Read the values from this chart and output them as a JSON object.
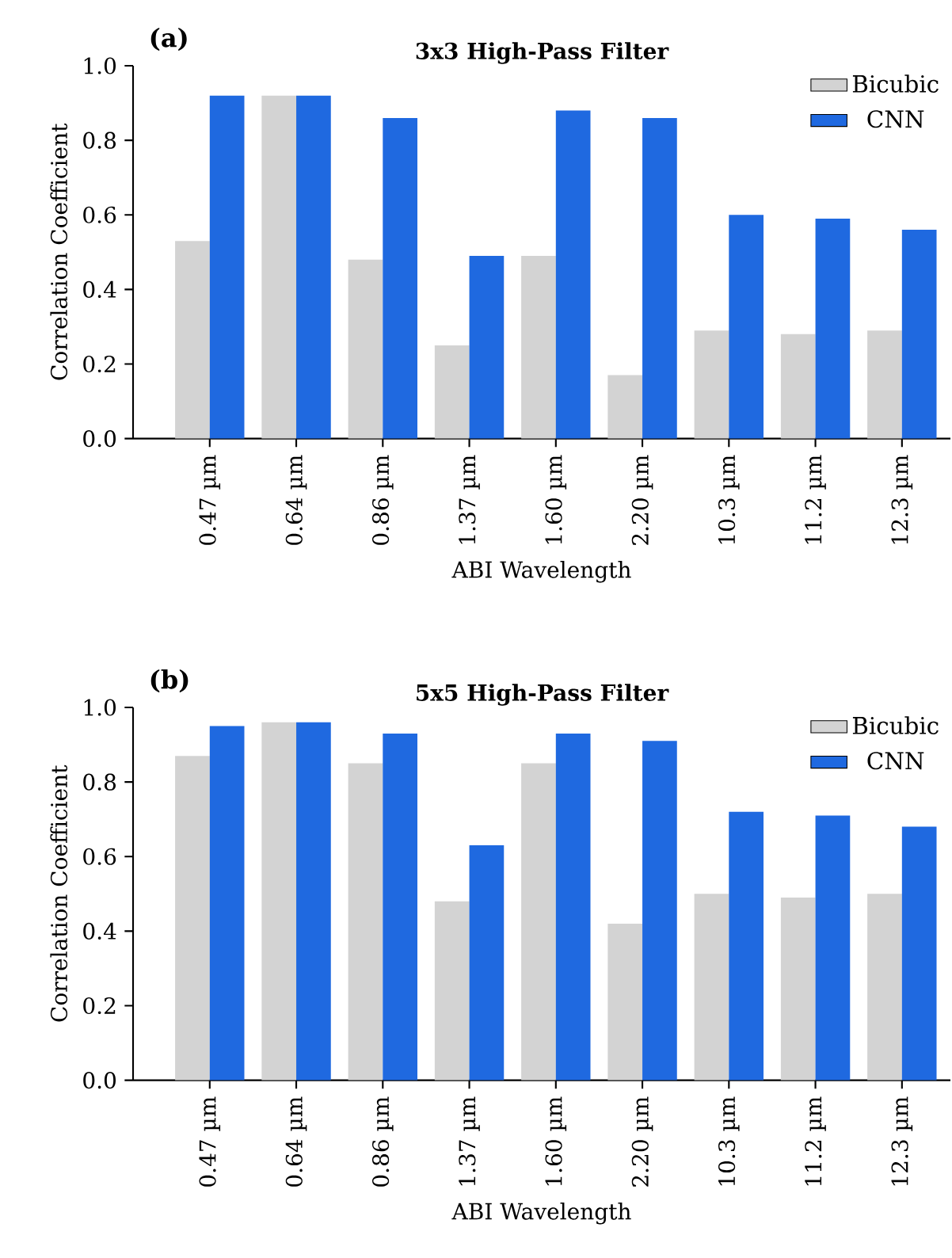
{
  "chart_data": [
    {
      "type": "bar",
      "title": "3x3 High-Pass Filter",
      "xlabel": "ABI Wavelength",
      "ylabel": "Correlation Coefficient",
      "annotations": [
        "(a)"
      ],
      "categories": [
        "0.47 µm",
        "0.64 µm",
        "0.86 µm",
        "1.37 µm",
        "1.60 µm",
        "2.20 µm",
        "10.3 µm",
        "11.2 µm",
        "12.3 µm"
      ],
      "series": [
        {
          "name": "Bicubic",
          "color": "#d3d3d3",
          "values": [
            0.53,
            0.92,
            0.48,
            0.25,
            0.49,
            0.17,
            0.29,
            0.28,
            0.29
          ]
        },
        {
          "name": "CNN",
          "color": "#1f69e0",
          "values": [
            0.92,
            0.92,
            0.86,
            0.49,
            0.88,
            0.86,
            0.6,
            0.59,
            0.56
          ]
        }
      ],
      "ylim": [
        0,
        1
      ],
      "yticks": [
        {
          "value": 0,
          "label": "0.0"
        },
        {
          "value": 0.2,
          "label": "0.2"
        },
        {
          "value": 0.4,
          "label": "0.4"
        },
        {
          "value": 0.6,
          "label": "0.6"
        },
        {
          "value": 0.8,
          "label": "0.8"
        },
        {
          "value": 1,
          "label": "1.0"
        }
      ],
      "legend": "top right"
    },
    {
      "type": "bar",
      "title": "5x5 High-Pass Filter",
      "xlabel": "ABI Wavelength",
      "ylabel": "Correlation Coefficient",
      "annotations": [
        "(b)"
      ],
      "categories": [
        "0.47 µm",
        "0.64 µm",
        "0.86 µm",
        "1.37 µm",
        "1.60 µm",
        "2.20 µm",
        "10.3 µm",
        "11.2 µm",
        "12.3 µm"
      ],
      "series": [
        {
          "name": "Bicubic",
          "color": "#d3d3d3",
          "values": [
            0.87,
            0.96,
            0.85,
            0.48,
            0.85,
            0.42,
            0.5,
            0.49,
            0.5
          ]
        },
        {
          "name": "CNN",
          "color": "#1f69e0",
          "values": [
            0.95,
            0.96,
            0.93,
            0.63,
            0.93,
            0.91,
            0.72,
            0.71,
            0.68
          ]
        }
      ],
      "ylim": [
        0,
        1
      ],
      "yticks": [
        {
          "value": 0,
          "label": "0.0"
        },
        {
          "value": 0.2,
          "label": "0.2"
        },
        {
          "value": 0.4,
          "label": "0.4"
        },
        {
          "value": 0.6,
          "label": "0.6"
        },
        {
          "value": 0.8,
          "label": "0.8"
        },
        {
          "value": 1,
          "label": "1.0"
        }
      ],
      "legend": "top right"
    }
  ]
}
